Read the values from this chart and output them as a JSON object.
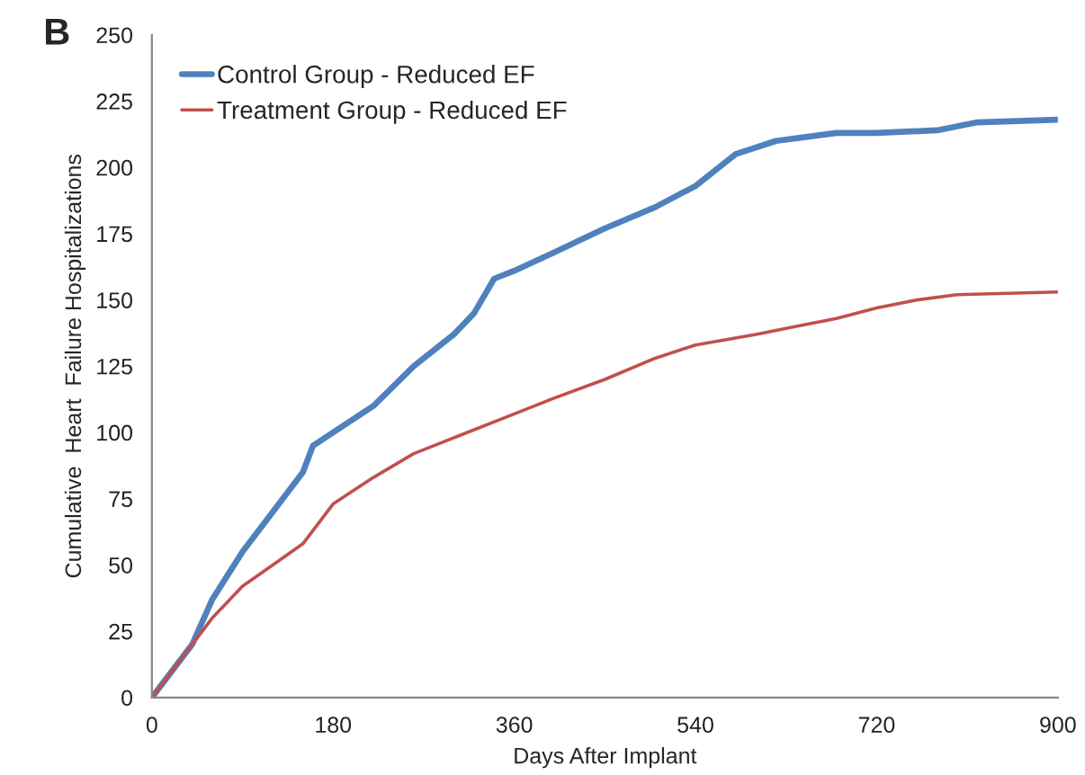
{
  "chart_data": {
    "type": "line",
    "x": [
      0,
      20,
      40,
      60,
      90,
      120,
      150,
      160,
      180,
      220,
      260,
      300,
      320,
      340,
      360,
      400,
      450,
      500,
      540,
      580,
      620,
      680,
      720,
      780,
      820,
      900
    ],
    "series": [
      {
        "name": "Control Group - Reduced EF",
        "color": "#4f81bd",
        "values": [
          0,
          10,
          20,
          37,
          55,
          70,
          85,
          95,
          100,
          110,
          125,
          137,
          145,
          158,
          161,
          168,
          177,
          185,
          193,
          205,
          210,
          213,
          213,
          214,
          217,
          218
        ]
      },
      {
        "name": "Treatment Group - Reduced EF",
        "color": "#c0504d",
        "x": [
          0,
          20,
          40,
          60,
          90,
          120,
          150,
          180,
          220,
          260,
          300,
          360,
          400,
          450,
          500,
          540,
          600,
          640,
          680,
          720,
          760,
          800,
          900
        ],
        "values": [
          0,
          10,
          20,
          30,
          42,
          50,
          58,
          73,
          83,
          92,
          98,
          107,
          113,
          120,
          128,
          133,
          137,
          140,
          143,
          147,
          150,
          152,
          153
        ]
      }
    ],
    "xlabel": "Days After Implant",
    "ylabel": "Cumulative  Heart  Failure Hospitalizations",
    "xlim": [
      0,
      900
    ],
    "xticks": [
      0,
      180,
      360,
      540,
      720,
      900
    ],
    "ylim": [
      0,
      250
    ],
    "yticks": [
      0,
      25,
      50,
      75,
      100,
      125,
      150,
      175,
      200,
      225,
      250
    ],
    "annotations": [
      "B"
    ],
    "legend": "top left",
    "grid": false,
    "line_style": "solid"
  }
}
